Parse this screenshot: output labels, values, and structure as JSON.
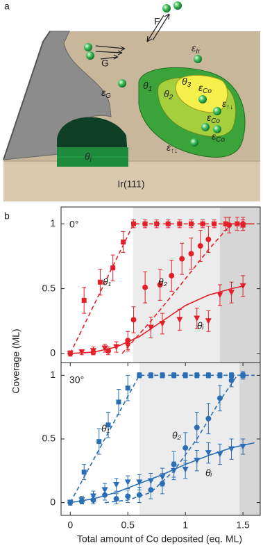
{
  "diagram": {
    "label": "a",
    "flux": "F",
    "graphene": "G",
    "substrate": "Ir(111)",
    "labels": [
      {
        "symbol": "ε",
        "sub": "Ir"
      },
      {
        "symbol": "ε",
        "sub": "G"
      },
      {
        "symbol": "θ",
        "sub": "1"
      },
      {
        "symbol": "θ",
        "sub": "2"
      },
      {
        "symbol": "θ",
        "sub": "3"
      },
      {
        "symbol": "ε",
        "sub": "Co"
      },
      {
        "symbol": "ε",
        "sub": "↑↓"
      },
      {
        "symbol": "ε",
        "sub": "Co"
      },
      {
        "symbol": "ε",
        "sub": "Co"
      },
      {
        "symbol": "ε",
        "sub": "↑↓"
      },
      {
        "symbol": "θ",
        "sub": "i"
      }
    ]
  },
  "figure": {
    "label": "b",
    "ylabel": "Coverage (ML)",
    "xlabel": "Total amount of Co deposited (eq. ML)"
  },
  "chart_data": [
    {
      "type": "scatter",
      "title": "0°",
      "xlim": [
        -0.08,
        1.65
      ],
      "ylim": [
        -0.07,
        1.13
      ],
      "yticks": [
        0,
        0.5,
        1
      ],
      "shaded_regions": [
        {
          "x": [
            0.545,
            1.3
          ],
          "color": "#ececec"
        },
        {
          "x": [
            1.3,
            1.65
          ],
          "color": "#d6d6d6"
        }
      ],
      "series": [
        {
          "name": "θ₁",
          "color": "#e3202a",
          "marker": "square",
          "x": [
            0.12,
            0.26,
            0.37,
            0.46,
            0.55,
            0.65,
            0.75,
            0.85,
            0.95,
            1.05,
            1.15,
            1.25,
            1.35,
            1.45,
            1.5
          ],
          "values": [
            0.41,
            0.55,
            0.66,
            0.86,
            1,
            1,
            1,
            1,
            1,
            1,
            1,
            1,
            1,
            1,
            0.99
          ],
          "errors": [
            0.1,
            0.1,
            0.1,
            0.08,
            0.03,
            0.03,
            0.03,
            0.03,
            0.03,
            0.03,
            0.03,
            0.03,
            0.05,
            0.05,
            0.04
          ],
          "fit": {
            "style": "dashed",
            "x": [
              0,
              0.55,
              1.6
            ],
            "values": [
              0,
              1,
              1
            ]
          }
        },
        {
          "name": "θ₂",
          "color": "#e3202a",
          "marker": "circle",
          "x": [
            0,
            0.2,
            0.33,
            0.5,
            0.55,
            0.65,
            0.78,
            0.88,
            0.97,
            1.05,
            1.13,
            1.2,
            1.38,
            1.5
          ],
          "values": [
            0,
            0.01,
            0.02,
            0.1,
            0.26,
            0.51,
            0.53,
            0.6,
            0.73,
            0.77,
            0.83,
            0.88,
            0.99,
            1
          ],
          "errors": [
            0.02,
            0.02,
            0.03,
            0.07,
            0.1,
            0.12,
            0.12,
            0.12,
            0.12,
            0.12,
            0.12,
            0.1,
            0.06,
            0.05
          ],
          "fit": {
            "style": "dashed",
            "x": [
              0.45,
              0.7,
              0.95,
              1.2,
              1.4,
              1.6
            ],
            "values": [
              0,
              0.25,
              0.52,
              0.8,
              1,
              1
            ]
          }
        },
        {
          "name": "θᵢ",
          "color": "#e3202a",
          "marker": "triangle",
          "x": [
            0,
            0.1,
            0.2,
            0.3,
            0.4,
            0.5,
            0.7,
            0.8,
            0.95,
            1.1,
            1.2,
            1.3,
            1.4,
            1.5
          ],
          "values": [
            0,
            0.01,
            0.02,
            0.04,
            0.05,
            0.06,
            0.2,
            0.23,
            0.26,
            0.27,
            0.25,
            0.45,
            0.47,
            0.52
          ],
          "errors": [
            0.02,
            0.02,
            0.03,
            0.03,
            0.04,
            0.04,
            0.08,
            0.08,
            0.08,
            0.08,
            0.08,
            0.08,
            0.08,
            0.08
          ],
          "fit": {
            "style": "solid",
            "x": [
              0,
              0.2,
              0.4,
              0.6,
              0.8,
              1,
              1.2,
              1.4,
              1.5
            ],
            "values": [
              0,
              0.01,
              0.05,
              0.13,
              0.25,
              0.37,
              0.45,
              0.5,
              0.52
            ]
          }
        }
      ]
    },
    {
      "type": "scatter",
      "title": "30°",
      "xlim": [
        -0.08,
        1.65
      ],
      "ylim": [
        -0.1,
        1.1
      ],
      "yticks": [
        0,
        0.5,
        1
      ],
      "xticks": [
        0,
        0.5,
        1,
        1.5
      ],
      "shaded_regions": [
        {
          "x": [
            0.6,
            1.47
          ],
          "color": "#ececec"
        },
        {
          "x": [
            1.47,
            1.65
          ],
          "color": "#d6d6d6"
        }
      ],
      "series": [
        {
          "name": "θ₁",
          "color": "#2a6fb6",
          "marker": "square",
          "x": [
            0.12,
            0.25,
            0.33,
            0.42,
            0.5,
            0.6,
            0.7,
            0.8,
            0.9,
            1,
            1.1,
            1.2,
            1.3,
            1.4,
            1.5
          ],
          "values": [
            0.24,
            0.48,
            0.61,
            0.79,
            0.9,
            1,
            1,
            1,
            1,
            1,
            1,
            1,
            1,
            1,
            1
          ],
          "errors": [
            0.06,
            0.1,
            0.1,
            0.1,
            0.1,
            0.02,
            0.02,
            0.02,
            0.02,
            0.02,
            0.02,
            0.02,
            0.02,
            0.02,
            0.02
          ],
          "fit": {
            "style": "dashed",
            "x": [
              0,
              0.6,
              1.6
            ],
            "values": [
              0,
              1,
              1
            ]
          }
        },
        {
          "name": "θ₂",
          "color": "#2a6fb6",
          "marker": "circle",
          "x": [
            0,
            0.1,
            0.2,
            0.3,
            0.4,
            0.5,
            0.6,
            0.7,
            0.8,
            0.9,
            1,
            1.1,
            1.2,
            1.3,
            1.4,
            1.5
          ],
          "values": [
            0,
            0.01,
            0.02,
            0.06,
            0.03,
            0.05,
            0.06,
            0.1,
            0.15,
            0.3,
            0.43,
            0.59,
            0.66,
            0.82,
            0.96,
            1
          ],
          "errors": [
            0.02,
            0.02,
            0.03,
            0.04,
            0.04,
            0.05,
            0.06,
            0.07,
            0.08,
            0.1,
            0.12,
            0.12,
            0.12,
            0.1,
            0.05,
            0.03
          ],
          "fit": {
            "style": "dashed",
            "x": [
              0.3,
              0.5,
              0.7,
              0.9,
              1.1,
              1.3,
              1.45,
              1.6
            ],
            "values": [
              0,
              0.02,
              0.08,
              0.25,
              0.5,
              0.8,
              1,
              1
            ]
          }
        },
        {
          "name": "θᵢ",
          "color": "#2a6fb6",
          "marker": "triangle",
          "x": [
            0,
            0.1,
            0.2,
            0.3,
            0.4,
            0.5,
            0.6,
            0.7,
            0.8,
            0.9,
            1,
            1.1,
            1.2,
            1.3,
            1.4,
            1.5
          ],
          "values": [
            0,
            0.02,
            0.05,
            0.1,
            0.14,
            0.16,
            0.16,
            0.17,
            0.2,
            0.25,
            0.26,
            0.33,
            0.39,
            0.38,
            0.42,
            0.44
          ],
          "errors": [
            0.02,
            0.03,
            0.04,
            0.05,
            0.05,
            0.05,
            0.06,
            0.06,
            0.07,
            0.07,
            0.07,
            0.08,
            0.08,
            0.08,
            0.08,
            0.06
          ],
          "fit": {
            "style": "solid",
            "x": [
              0,
              0.2,
              0.4,
              0.6,
              0.8,
              1,
              1.2,
              1.4,
              1.6
            ],
            "values": [
              0,
              0.03,
              0.08,
              0.15,
              0.22,
              0.3,
              0.37,
              0.43,
              0.47
            ]
          }
        }
      ]
    }
  ]
}
